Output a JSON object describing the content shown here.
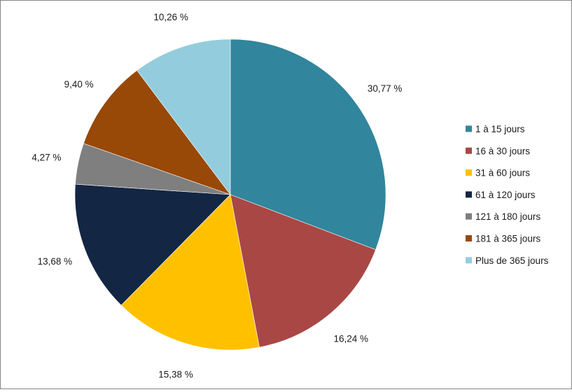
{
  "chart_data": {
    "type": "pie",
    "title": "",
    "categories": [
      "1 à 15 jours",
      "16 à 30 jours",
      "31 à 60 jours",
      "61 à 120 jours",
      "121 à 180 jours",
      "181 à 365 jours",
      "Plus de 365 jours"
    ],
    "values": [
      30.77,
      16.24,
      15.38,
      13.68,
      4.27,
      9.4,
      10.26
    ],
    "data_labels": [
      "30,77 %",
      "16,24 %",
      "15,38 %",
      "13,68 %",
      "4,27 %",
      "9,40 %",
      "10,26 %"
    ],
    "colors": [
      "#31859c",
      "#a94745",
      "#ffc000",
      "#132643",
      "#7f7f7f",
      "#984807",
      "#93cddd"
    ],
    "start": "12 o'clock",
    "direction": "clockwise",
    "legend_position": "right"
  }
}
